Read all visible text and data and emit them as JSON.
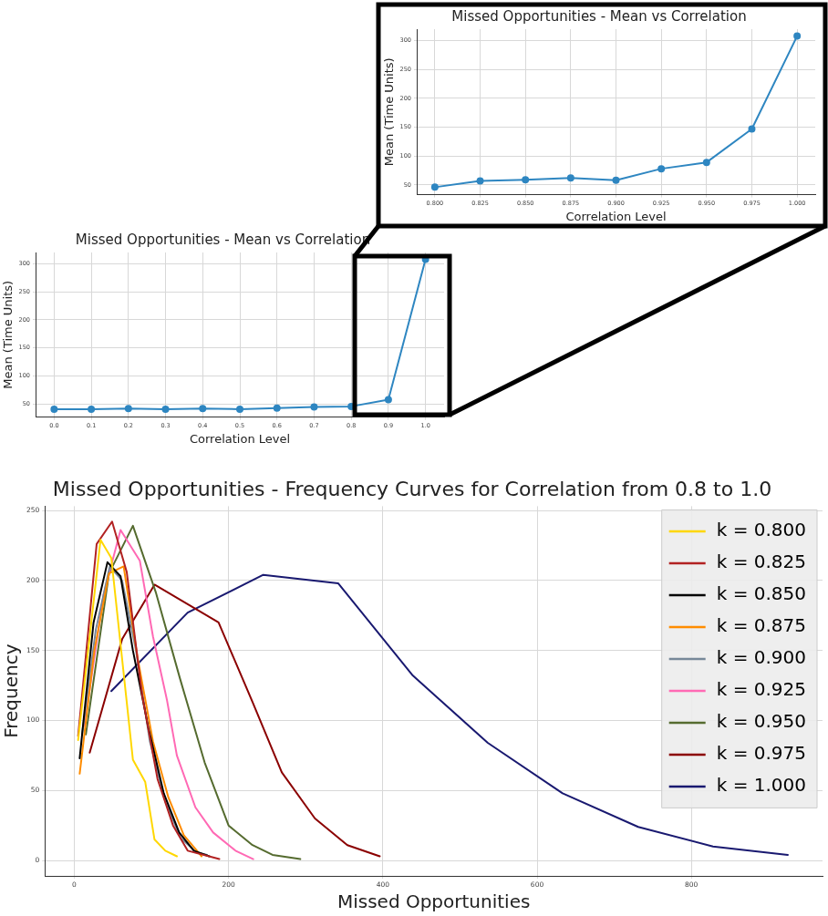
{
  "chart_data": [
    {
      "type": "line",
      "title": "Missed Opportunities - Mean vs Correlation",
      "xlabel": "Correlation Level",
      "ylabel": "Mean (Time Units)",
      "marker": "circle",
      "grid": true,
      "legend": false,
      "xlim": [
        0.79,
        1.01
      ],
      "xticks": [
        {
          "value": 0.8,
          "label": "0.800"
        },
        {
          "value": 0.825,
          "label": "0.825"
        },
        {
          "value": 0.85,
          "label": "0.850"
        },
        {
          "value": 0.875,
          "label": "0.875"
        },
        {
          "value": 0.9,
          "label": "0.900"
        },
        {
          "value": 0.925,
          "label": "0.925"
        },
        {
          "value": 0.95,
          "label": "0.950"
        },
        {
          "value": 0.975,
          "label": "0.975"
        },
        {
          "value": 1.0,
          "label": "1.000"
        }
      ],
      "ylim": [
        33,
        320
      ],
      "yticks": [
        50,
        100,
        150,
        200,
        250,
        300
      ],
      "series": [
        {
          "color": "#2e86c1",
          "x": [
            0.8,
            0.825,
            0.85,
            0.875,
            0.9,
            0.925,
            0.95,
            0.975,
            1.0
          ],
          "values": [
            46,
            57,
            59,
            62,
            58,
            78,
            89,
            147,
            308
          ]
        }
      ]
    },
    {
      "type": "line",
      "title": "Missed Opportunities - Mean vs Correlation",
      "xlabel": "Correlation Level",
      "ylabel": "Mean (Time Units)",
      "marker": "circle",
      "grid": true,
      "legend": false,
      "xlim": [
        -0.05,
        1.05
      ],
      "xticks": [
        {
          "value": 0,
          "label": "0.0"
        },
        0.1,
        0.2,
        0.3,
        0.4,
        0.5,
        0.6,
        0.7,
        0.8,
        0.9,
        {
          "value": 1,
          "label": "1.0"
        }
      ],
      "ylim": [
        27,
        320
      ],
      "yticks": [
        50,
        100,
        150,
        200,
        250,
        300
      ],
      "series": [
        {
          "color": "#2e86c1",
          "x": [
            0,
            0.1,
            0.2,
            0.3,
            0.4,
            0.5,
            0.6,
            0.7,
            0.8,
            0.9,
            1.0
          ],
          "values": [
            41,
            41,
            42,
            41,
            42,
            41,
            43,
            45,
            46,
            58,
            308
          ]
        }
      ]
    },
    {
      "type": "line",
      "title": "Missed Opportunities - Frequency Curves for Correlation from 0.8 to 1.0",
      "xlabel": "Missed Opportunities",
      "ylabel": "Frequency",
      "marker": "none",
      "grid": true,
      "legend": "top right",
      "xlim": [
        -38,
        970
      ],
      "xticks": [
        0,
        200,
        400,
        600,
        800
      ],
      "ylim": [
        -11,
        253
      ],
      "yticks": [
        0,
        50,
        100,
        150,
        200,
        250
      ],
      "series": [
        {
          "name": "k = 0.800",
          "color": "#ffd700",
          "x": [
            5,
            34,
            48,
            76,
            92,
            104,
            118,
            133
          ],
          "values": [
            86,
            229,
            216,
            72,
            56,
            15,
            7,
            3
          ]
        },
        {
          "name": "k = 0.825",
          "color": "#b22222",
          "x": [
            5,
            29,
            49,
            68,
            88,
            108,
            128,
            147,
            168,
            188
          ],
          "values": [
            89,
            226,
            242,
            206,
            118,
            58,
            25,
            7,
            4,
            1
          ]
        },
        {
          "name": "k = 0.850",
          "color": "#000000",
          "x": [
            7,
            25,
            43,
            60,
            76,
            96,
            116,
            136,
            155,
            175
          ],
          "values": [
            73,
            170,
            213,
            203,
            150,
            95,
            48,
            20,
            7,
            3
          ]
        },
        {
          "name": "k = 0.875",
          "color": "#ff8c00",
          "x": [
            7,
            26,
            45,
            64,
            82,
            102,
            122,
            142,
            162,
            165
          ],
          "values": [
            62,
            150,
            205,
            210,
            145,
            85,
            45,
            18,
            5,
            3
          ]
        },
        {
          "name": "k = 0.900",
          "color": "#778899",
          "x": [
            10,
            28,
            46,
            62,
            80,
            98,
            118,
            138,
            158,
            172
          ],
          "values": [
            90,
            165,
            210,
            200,
            150,
            85,
            42,
            16,
            6,
            4
          ]
        },
        {
          "name": "k = 0.925",
          "color": "#ff69b4",
          "x": [
            13,
            38,
            60,
            85,
            102,
            120,
            133,
            157,
            180,
            209,
            232
          ],
          "values": [
            96,
            190,
            236,
            214,
            160,
            115,
            75,
            38,
            20,
            7,
            1
          ]
        },
        {
          "name": "k = 0.950",
          "color": "#556b2f",
          "x": [
            15,
            45,
            76,
            106,
            137,
            169,
            200,
            231,
            257,
            293
          ],
          "values": [
            90,
            205,
            239,
            191,
            130,
            70,
            25,
            11,
            4,
            1
          ]
        },
        {
          "name": "k = 0.975",
          "color": "#8b0000",
          "x": [
            20,
            62,
            104,
            187,
            232,
            269,
            312,
            354,
            396
          ],
          "values": [
            77,
            158,
            197,
            170,
            112,
            63,
            30,
            11,
            3
          ]
        },
        {
          "name": "k = 1.000",
          "color": "#191970",
          "x": [
            48,
            147,
            245,
            342,
            439,
            536,
            633,
            731,
            828,
            925
          ],
          "values": [
            121,
            177,
            204,
            198,
            132,
            84,
            48,
            24,
            10,
            4
          ]
        }
      ]
    }
  ]
}
